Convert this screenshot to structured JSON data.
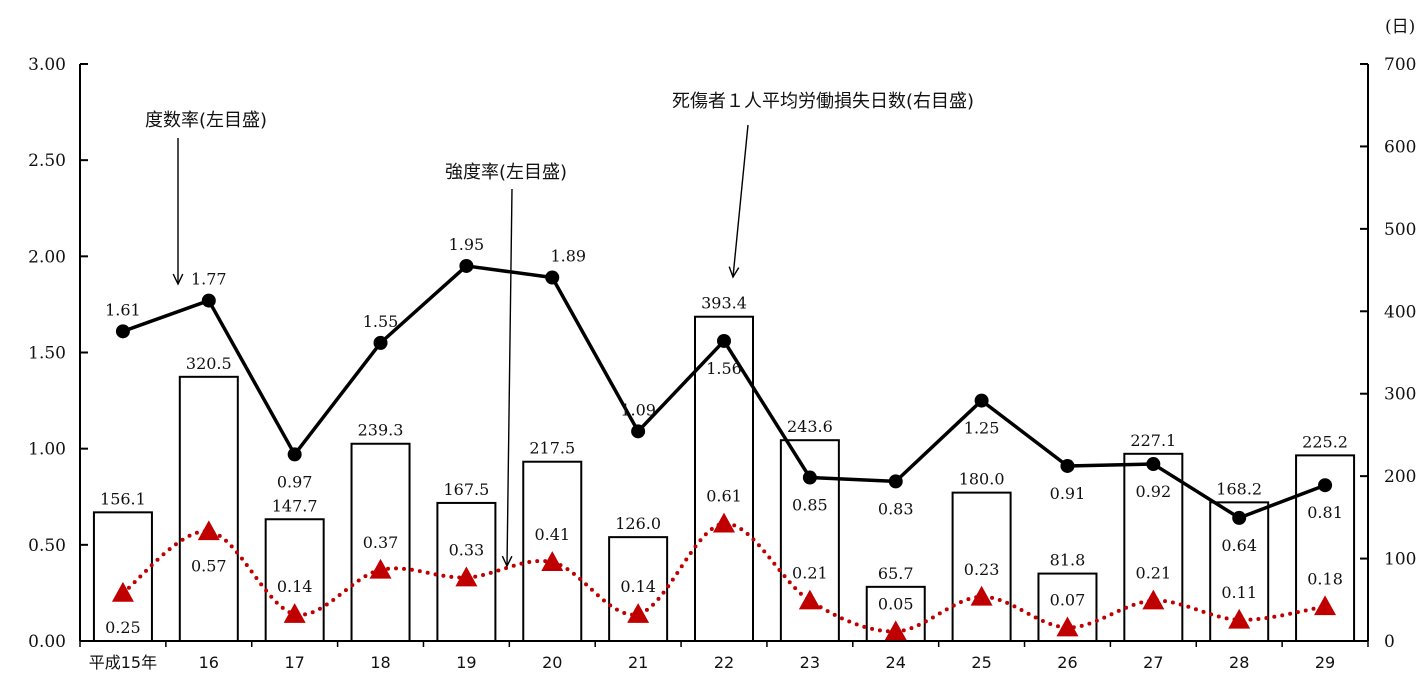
{
  "chart_data": {
    "type": "bar",
    "categories": [
      "平成15年",
      "16",
      "17",
      "18",
      "19",
      "20",
      "21",
      "22",
      "23",
      "24",
      "25",
      "26",
      "27",
      "28",
      "29"
    ],
    "series": [
      {
        "values": [
          156.1,
          320.5,
          147.7,
          239.3,
          167.5,
          217.5,
          126.0,
          393.4,
          243.6,
          65.7,
          180.0,
          81.8,
          227.1,
          168.2,
          225.2
        ],
        "labels": [
          "156.1",
          "320.5",
          "147.7",
          "239.3",
          "167.5",
          "217.5",
          "126.0",
          "393.4",
          "243.6",
          "65.7",
          "180.0",
          "81.8",
          "227.1",
          "168.2",
          "225.2"
        ],
        "axis": "right",
        "type": "bar"
      },
      {
        "values": [
          1.61,
          1.77,
          0.97,
          1.55,
          1.95,
          1.89,
          1.09,
          1.56,
          0.85,
          0.83,
          1.25,
          0.91,
          0.92,
          0.64,
          0.81
        ],
        "labels": [
          "1.61",
          "1.77",
          "0.97",
          "1.55",
          "1.95",
          "1.89",
          "1.09",
          "1.56",
          "0.85",
          "0.83",
          "1.25",
          "0.91",
          "0.92",
          "0.64",
          "0.81"
        ],
        "axis": "left",
        "type": "line",
        "color": "#000000"
      },
      {
        "values": [
          0.25,
          0.57,
          0.14,
          0.37,
          0.33,
          0.41,
          0.14,
          0.61,
          0.21,
          0.05,
          0.23,
          0.07,
          0.21,
          0.11,
          0.18
        ],
        "labels": [
          "0.25",
          "0.57",
          "0.14",
          "0.37",
          "0.33",
          "0.41",
          "0.14",
          "0.61",
          "0.21",
          "0.05",
          "0.23",
          "0.07",
          "0.21",
          "0.11",
          "0.18"
        ],
        "axis": "left",
        "type": "line",
        "color": "#c00000"
      }
    ],
    "left_axis": {
      "range": [
        0,
        3
      ],
      "ticks": [
        "0.00",
        "0.50",
        "1.00",
        "1.50",
        "2.00",
        "2.50",
        "3.00"
      ]
    },
    "right_axis": {
      "range": [
        0,
        700
      ],
      "ticks": [
        "0",
        "100",
        "200",
        "300",
        "400",
        "500",
        "600",
        "700"
      ],
      "unit": "(日)"
    },
    "annotations": [
      "度数率(左目盛)",
      "強度率(左目盛)",
      "死傷者１人平均労働損失日数(右目盛)"
    ],
    "grid": false,
    "legend": "none"
  }
}
